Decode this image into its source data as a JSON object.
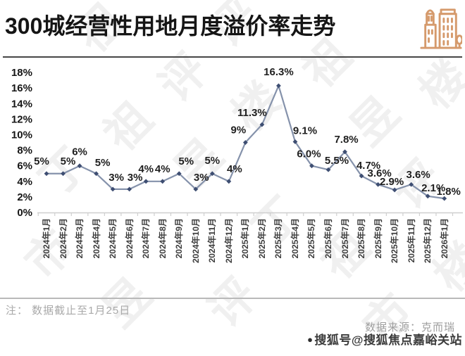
{
  "header": {
    "title": "300城经营性用地月度溢价率走势",
    "icon": "buildings-icon",
    "icon_color": "#d59a6c"
  },
  "chart_data": {
    "type": "line",
    "title": "300城经营性用地月度溢价率走势",
    "xlabel": "",
    "ylabel": "",
    "ylim": [
      0,
      18
    ],
    "grid": false,
    "legend": false,
    "y_ticks": [
      "18%",
      "16%",
      "14%",
      "12%",
      "10%",
      "8%",
      "6%",
      "4%",
      "2%",
      "0%"
    ],
    "categories": [
      "2024年1月",
      "2024年2月",
      "2024年3月",
      "2024年4月",
      "2024年5月",
      "2024年6月",
      "2024年7月",
      "2024年8月",
      "2024年9月",
      "2024年10月",
      "2024年11月",
      "2024年12月",
      "2025年1月",
      "2025年2月",
      "2025年3月",
      "2025年4月",
      "2025年5月",
      "2025年6月",
      "2025年7月",
      "2025年8月",
      "2025年9月",
      "2025年10月",
      "2025年11月",
      "2025年12月",
      "2026年1月"
    ],
    "values": [
      5,
      5,
      6,
      5,
      3,
      3,
      4,
      4,
      5,
      3,
      5,
      4,
      9,
      11.3,
      16.3,
      9.1,
      6.0,
      5.5,
      7.8,
      4.7,
      3.6,
      2.9,
      3.6,
      2.1,
      1.8
    ],
    "point_labels": [
      "5%",
      "5%",
      "6%",
      "5%",
      "3%",
      "3%",
      "4%",
      "4%",
      "5%",
      "3%",
      "5%",
      "4%",
      "9%",
      "11.3%",
      "16.3%",
      "9.1%",
      "6.0%",
      "5.5%",
      "7.8%",
      "4.7%",
      "3.6%",
      "2.9%",
      "3.6%",
      "2.1%",
      "1.8%"
    ],
    "line_color": "#8592ab",
    "marker_color": "#3e4e72",
    "label_color": "#1f1f1f",
    "axis_color": "#cfcfcf"
  },
  "footer": {
    "note": "注： 数据截止至1月25日",
    "source": "数据来源：克而瑞",
    "sohu_dot": "●",
    "sohu_badge": "搜狐号@搜狐焦点嘉峪关站"
  },
  "watermark": {
    "chars": [
      "丁",
      "祖",
      "昱",
      "评",
      "楼",
      "市"
    ]
  }
}
